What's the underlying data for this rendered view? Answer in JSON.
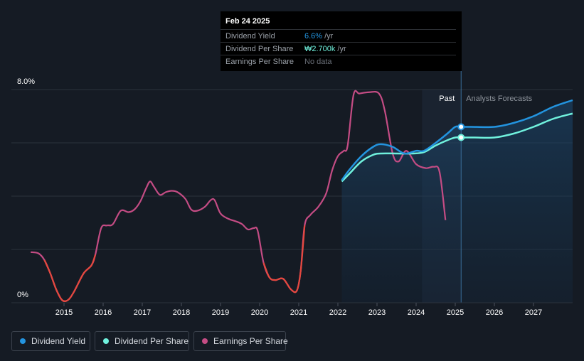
{
  "tooltip": {
    "date": "Feb 24 2025",
    "rows": [
      {
        "label": "Dividend Yield",
        "value": "6.6%",
        "unit": "/yr",
        "color": "#2394df"
      },
      {
        "label": "Dividend Per Share",
        "value": "₩2.700k",
        "unit": "/yr",
        "color": "#70f1dd"
      },
      {
        "label": "Earnings Per Share",
        "value": "No data",
        "unit": "",
        "color": "#6b7079"
      }
    ]
  },
  "chart_data": {
    "type": "line",
    "y_axis": {
      "min": 0,
      "max": 8,
      "labels": [
        "8.0%",
        "0%"
      ]
    },
    "x_ticks": [
      "2015",
      "2016",
      "2017",
      "2018",
      "2019",
      "2020",
      "2021",
      "2022",
      "2023",
      "2024",
      "2025",
      "2026",
      "2027"
    ],
    "x_range": [
      2014.0,
      2028.0
    ],
    "region_past_label": "Past",
    "region_forecast_label": "Analysts Forecasts",
    "series": [
      {
        "name": "Dividend Yield",
        "color": "#2394df",
        "points": [
          [
            2022.1,
            4.6
          ],
          [
            2022.3,
            5.0
          ],
          [
            2022.6,
            5.5
          ],
          [
            2022.9,
            5.85
          ],
          [
            2023.1,
            5.95
          ],
          [
            2023.4,
            5.85
          ],
          [
            2023.7,
            5.6
          ],
          [
            2024.0,
            5.7
          ],
          [
            2024.2,
            5.7
          ],
          [
            2024.5,
            6.0
          ],
          [
            2024.8,
            6.35
          ],
          [
            2025.0,
            6.6
          ],
          [
            2025.15,
            6.6
          ],
          [
            2025.4,
            6.6
          ],
          [
            2026.0,
            6.6
          ],
          [
            2026.5,
            6.75
          ],
          [
            2027.0,
            7.0
          ],
          [
            2027.5,
            7.35
          ],
          [
            2028.0,
            7.6
          ]
        ]
      },
      {
        "name": "Dividend Per Share",
        "color": "#70f1dd",
        "points": [
          [
            2022.1,
            4.55
          ],
          [
            2022.3,
            4.85
          ],
          [
            2022.6,
            5.3
          ],
          [
            2022.9,
            5.55
          ],
          [
            2023.1,
            5.6
          ],
          [
            2023.5,
            5.6
          ],
          [
            2023.9,
            5.6
          ],
          [
            2024.2,
            5.65
          ],
          [
            2024.5,
            5.9
          ],
          [
            2024.8,
            6.1
          ],
          [
            2025.0,
            6.2
          ],
          [
            2025.15,
            6.2
          ],
          [
            2025.5,
            6.2
          ],
          [
            2026.0,
            6.2
          ],
          [
            2026.5,
            6.35
          ],
          [
            2027.0,
            6.6
          ],
          [
            2027.5,
            6.9
          ],
          [
            2028.0,
            7.1
          ]
        ]
      },
      {
        "name": "Earnings Per Share",
        "color": "#c44c84",
        "negative_color": "#e5483e",
        "points": [
          [
            2014.15,
            1.9
          ],
          [
            2014.35,
            1.85
          ],
          [
            2014.5,
            1.6
          ],
          [
            2014.65,
            1.1
          ],
          [
            2014.8,
            0.5
          ],
          [
            2014.95,
            0.1
          ],
          [
            2015.1,
            0.1
          ],
          [
            2015.25,
            0.4
          ],
          [
            2015.5,
            1.1
          ],
          [
            2015.7,
            1.4
          ],
          [
            2015.8,
            1.8
          ],
          [
            2015.95,
            2.8
          ],
          [
            2016.1,
            2.9
          ],
          [
            2016.25,
            2.95
          ],
          [
            2016.45,
            3.45
          ],
          [
            2016.65,
            3.4
          ],
          [
            2016.8,
            3.5
          ],
          [
            2016.95,
            3.8
          ],
          [
            2017.1,
            4.3
          ],
          [
            2017.2,
            4.55
          ],
          [
            2017.3,
            4.35
          ],
          [
            2017.45,
            4.05
          ],
          [
            2017.6,
            4.15
          ],
          [
            2017.75,
            4.2
          ],
          [
            2017.9,
            4.15
          ],
          [
            2018.1,
            3.9
          ],
          [
            2018.25,
            3.5
          ],
          [
            2018.4,
            3.45
          ],
          [
            2018.6,
            3.6
          ],
          [
            2018.75,
            3.85
          ],
          [
            2018.85,
            3.85
          ],
          [
            2019.0,
            3.35
          ],
          [
            2019.2,
            3.15
          ],
          [
            2019.4,
            3.05
          ],
          [
            2019.55,
            2.95
          ],
          [
            2019.7,
            2.75
          ],
          [
            2019.85,
            2.8
          ],
          [
            2019.95,
            2.7
          ],
          [
            2020.1,
            1.5
          ],
          [
            2020.25,
            0.95
          ],
          [
            2020.4,
            0.85
          ],
          [
            2020.6,
            0.9
          ],
          [
            2020.8,
            0.5
          ],
          [
            2020.95,
            0.45
          ],
          [
            2021.05,
            1.2
          ],
          [
            2021.15,
            2.9
          ],
          [
            2021.3,
            3.3
          ],
          [
            2021.5,
            3.6
          ],
          [
            2021.7,
            4.1
          ],
          [
            2021.85,
            4.95
          ],
          [
            2022.0,
            5.5
          ],
          [
            2022.15,
            5.7
          ],
          [
            2022.25,
            5.9
          ],
          [
            2022.4,
            7.8
          ],
          [
            2022.55,
            7.85
          ],
          [
            2022.8,
            7.9
          ],
          [
            2023.05,
            7.85
          ],
          [
            2023.2,
            7.2
          ],
          [
            2023.4,
            5.6
          ],
          [
            2023.55,
            5.3
          ],
          [
            2023.75,
            5.7
          ],
          [
            2024.0,
            5.2
          ],
          [
            2024.25,
            5.05
          ],
          [
            2024.45,
            5.1
          ],
          [
            2024.6,
            4.9
          ],
          [
            2024.75,
            3.1
          ]
        ]
      }
    ],
    "legend": [
      {
        "name": "Dividend Yield",
        "color": "#2394df"
      },
      {
        "name": "Dividend Per Share",
        "color": "#70f1dd"
      },
      {
        "name": "Earnings Per Share",
        "color": "#c44c84"
      }
    ],
    "markers": [
      {
        "series": "Dividend Yield",
        "x": 2025.15,
        "y": 6.6
      },
      {
        "series": "Dividend Per Share",
        "x": 2025.15,
        "y": 6.2
      }
    ],
    "past_shade_range": [
      2022.1,
      2025.15
    ],
    "recent_shade_range": [
      2024.15,
      2025.15
    ],
    "forecast_shade_range": [
      2025.15,
      2028.0
    ]
  }
}
